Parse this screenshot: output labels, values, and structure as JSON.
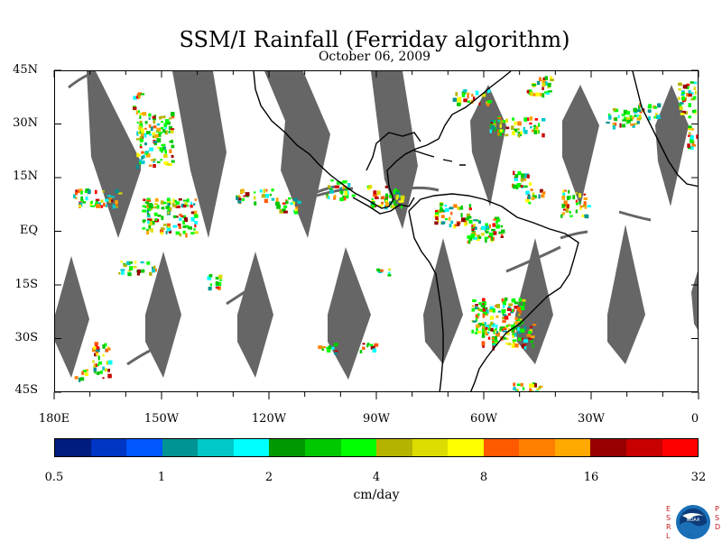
{
  "title": "SSM/I Rainfall (Ferriday algorithm)",
  "subtitle": "October 06, 2009",
  "lat_labels": [
    "45N",
    "30N",
    "15N",
    "EQ",
    "15S",
    "30S",
    "45S"
  ],
  "lon_labels": [
    "180E",
    "150W",
    "120W",
    "90W",
    "60W",
    "30W",
    "0"
  ],
  "colorbar": {
    "colors": [
      "#001c7c",
      "#0036c4",
      "#0056ff",
      "#009494",
      "#00c8c8",
      "#00ffff",
      "#009800",
      "#00c800",
      "#00ff00",
      "#b4b400",
      "#dcdc00",
      "#ffff00",
      "#ff5a00",
      "#ff8000",
      "#ffa800",
      "#960000",
      "#c80000",
      "#ff0000"
    ],
    "tick_labels": [
      "0.5",
      "1",
      "2",
      "4",
      "8",
      "16",
      "32"
    ],
    "units": "cm/day"
  },
  "logo": {
    "left_text": "ESRL",
    "right_text": "PSD",
    "center_text": "NOAA",
    "colors": {
      "red": "#c8191e",
      "blue": "#1a6fb6",
      "navy": "#0d3b79"
    }
  },
  "map": {
    "swath_color": "#666666",
    "coastline_color": "#000000"
  }
}
